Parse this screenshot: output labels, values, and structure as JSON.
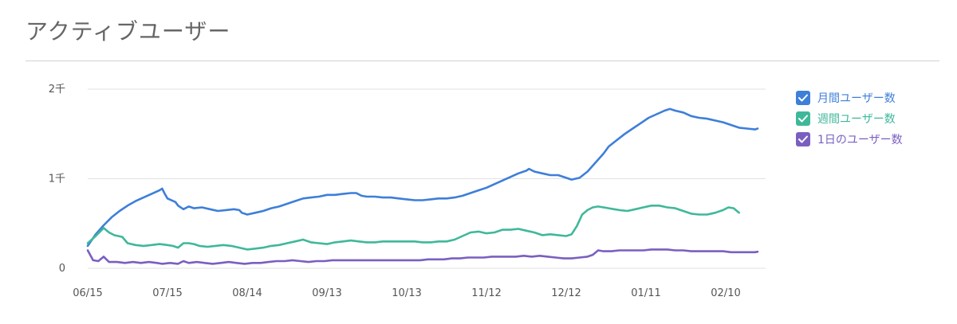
{
  "header": {
    "title": "アクティブユーザー"
  },
  "legend": {
    "items": [
      {
        "label": "月間ユーザー数",
        "color": "#3d7fd9",
        "checked": true
      },
      {
        "label": "週間ユーザー数",
        "color": "#3fb89a",
        "checked": true
      },
      {
        "label": "1日のユーザー数",
        "color": "#7a5fc0",
        "checked": true
      }
    ]
  },
  "chart_data": {
    "type": "line",
    "ylim": [
      0,
      2000
    ],
    "y_ticks": [
      {
        "value": 0,
        "label": "0"
      },
      {
        "value": 1000,
        "label": "1千"
      },
      {
        "value": 2000,
        "label": "2千"
      }
    ],
    "x_range": [
      0,
      255
    ],
    "x_ticks": [
      {
        "x": 0,
        "label": "06/15"
      },
      {
        "x": 30,
        "label": "07/15"
      },
      {
        "x": 60,
        "label": "08/14"
      },
      {
        "x": 90,
        "label": "09/13"
      },
      {
        "x": 120,
        "label": "10/13"
      },
      {
        "x": 150,
        "label": "11/12"
      },
      {
        "x": 180,
        "label": "12/12"
      },
      {
        "x": 210,
        "label": "01/11"
      },
      {
        "x": 240,
        "label": "02/10"
      }
    ],
    "grid": true,
    "legend_position": "right",
    "series": [
      {
        "name": "月間ユーザー数",
        "color": "#3d7fd9",
        "points": [
          [
            0,
            250
          ],
          [
            3,
            380
          ],
          [
            6,
            480
          ],
          [
            9,
            570
          ],
          [
            12,
            640
          ],
          [
            15,
            700
          ],
          [
            18,
            750
          ],
          [
            21,
            790
          ],
          [
            24,
            830
          ],
          [
            27,
            870
          ],
          [
            28,
            890
          ],
          [
            29,
            830
          ],
          [
            30,
            780
          ],
          [
            33,
            740
          ],
          [
            34,
            700
          ],
          [
            36,
            660
          ],
          [
            38,
            690
          ],
          [
            40,
            670
          ],
          [
            43,
            680
          ],
          [
            46,
            660
          ],
          [
            49,
            640
          ],
          [
            52,
            650
          ],
          [
            55,
            660
          ],
          [
            57,
            650
          ],
          [
            58,
            620
          ],
          [
            60,
            600
          ],
          [
            63,
            620
          ],
          [
            66,
            640
          ],
          [
            69,
            670
          ],
          [
            72,
            690
          ],
          [
            75,
            720
          ],
          [
            78,
            750
          ],
          [
            81,
            780
          ],
          [
            84,
            790
          ],
          [
            87,
            800
          ],
          [
            90,
            820
          ],
          [
            93,
            820
          ],
          [
            96,
            830
          ],
          [
            99,
            840
          ],
          [
            101,
            840
          ],
          [
            103,
            810
          ],
          [
            105,
            800
          ],
          [
            108,
            800
          ],
          [
            111,
            790
          ],
          [
            114,
            790
          ],
          [
            117,
            780
          ],
          [
            120,
            770
          ],
          [
            123,
            760
          ],
          [
            126,
            760
          ],
          [
            129,
            770
          ],
          [
            132,
            780
          ],
          [
            135,
            780
          ],
          [
            138,
            790
          ],
          [
            141,
            810
          ],
          [
            144,
            840
          ],
          [
            147,
            870
          ],
          [
            150,
            900
          ],
          [
            153,
            940
          ],
          [
            156,
            980
          ],
          [
            159,
            1020
          ],
          [
            162,
            1060
          ],
          [
            165,
            1090
          ],
          [
            166,
            1110
          ],
          [
            168,
            1080
          ],
          [
            171,
            1060
          ],
          [
            174,
            1040
          ],
          [
            177,
            1040
          ],
          [
            180,
            1010
          ],
          [
            182,
            990
          ],
          [
            185,
            1010
          ],
          [
            188,
            1080
          ],
          [
            191,
            1180
          ],
          [
            194,
            1280
          ],
          [
            196,
            1360
          ],
          [
            199,
            1430
          ],
          [
            202,
            1500
          ],
          [
            205,
            1560
          ],
          [
            208,
            1620
          ],
          [
            211,
            1680
          ],
          [
            214,
            1720
          ],
          [
            217,
            1760
          ],
          [
            219,
            1780
          ],
          [
            221,
            1760
          ],
          [
            224,
            1740
          ],
          [
            227,
            1700
          ],
          [
            230,
            1680
          ],
          [
            233,
            1670
          ],
          [
            236,
            1650
          ],
          [
            239,
            1630
          ],
          [
            242,
            1600
          ],
          [
            245,
            1570
          ],
          [
            248,
            1560
          ],
          [
            251,
            1550
          ],
          [
            252,
            1560
          ]
        ]
      },
      {
        "name": "週間ユーザー数",
        "color": "#3fb89a",
        "points": [
          [
            0,
            280
          ],
          [
            3,
            360
          ],
          [
            6,
            450
          ],
          [
            8,
            400
          ],
          [
            10,
            370
          ],
          [
            13,
            350
          ],
          [
            15,
            280
          ],
          [
            18,
            260
          ],
          [
            21,
            250
          ],
          [
            24,
            260
          ],
          [
            27,
            270
          ],
          [
            30,
            260
          ],
          [
            32,
            250
          ],
          [
            34,
            230
          ],
          [
            36,
            280
          ],
          [
            38,
            280
          ],
          [
            40,
            270
          ],
          [
            42,
            250
          ],
          [
            45,
            240
          ],
          [
            48,
            250
          ],
          [
            51,
            260
          ],
          [
            54,
            250
          ],
          [
            57,
            230
          ],
          [
            60,
            210
          ],
          [
            63,
            220
          ],
          [
            66,
            230
          ],
          [
            69,
            250
          ],
          [
            72,
            260
          ],
          [
            75,
            280
          ],
          [
            78,
            300
          ],
          [
            81,
            320
          ],
          [
            84,
            290
          ],
          [
            87,
            280
          ],
          [
            90,
            270
          ],
          [
            93,
            290
          ],
          [
            96,
            300
          ],
          [
            99,
            310
          ],
          [
            102,
            300
          ],
          [
            105,
            290
          ],
          [
            108,
            290
          ],
          [
            111,
            300
          ],
          [
            114,
            300
          ],
          [
            117,
            300
          ],
          [
            120,
            300
          ],
          [
            123,
            300
          ],
          [
            126,
            290
          ],
          [
            129,
            290
          ],
          [
            132,
            300
          ],
          [
            135,
            300
          ],
          [
            138,
            320
          ],
          [
            141,
            360
          ],
          [
            144,
            400
          ],
          [
            147,
            410
          ],
          [
            150,
            390
          ],
          [
            153,
            400
          ],
          [
            156,
            430
          ],
          [
            159,
            430
          ],
          [
            162,
            440
          ],
          [
            165,
            420
          ],
          [
            168,
            400
          ],
          [
            171,
            370
          ],
          [
            174,
            380
          ],
          [
            177,
            370
          ],
          [
            180,
            360
          ],
          [
            182,
            380
          ],
          [
            184,
            470
          ],
          [
            186,
            600
          ],
          [
            188,
            650
          ],
          [
            190,
            680
          ],
          [
            192,
            690
          ],
          [
            194,
            680
          ],
          [
            196,
            670
          ],
          [
            198,
            660
          ],
          [
            200,
            650
          ],
          [
            203,
            640
          ],
          [
            206,
            660
          ],
          [
            209,
            680
          ],
          [
            212,
            700
          ],
          [
            215,
            700
          ],
          [
            218,
            680
          ],
          [
            221,
            670
          ],
          [
            224,
            640
          ],
          [
            227,
            610
          ],
          [
            230,
            600
          ],
          [
            233,
            600
          ],
          [
            236,
            620
          ],
          [
            239,
            650
          ],
          [
            241,
            680
          ],
          [
            243,
            670
          ],
          [
            245,
            620
          ]
        ]
      },
      {
        "name": "1日のユーザー数",
        "color": "#7a5fc0",
        "points": [
          [
            0,
            200
          ],
          [
            2,
            90
          ],
          [
            4,
            80
          ],
          [
            6,
            130
          ],
          [
            8,
            70
          ],
          [
            11,
            70
          ],
          [
            14,
            60
          ],
          [
            17,
            70
          ],
          [
            20,
            60
          ],
          [
            23,
            70
          ],
          [
            26,
            60
          ],
          [
            28,
            50
          ],
          [
            31,
            60
          ],
          [
            34,
            50
          ],
          [
            36,
            80
          ],
          [
            38,
            60
          ],
          [
            41,
            70
          ],
          [
            44,
            60
          ],
          [
            47,
            50
          ],
          [
            50,
            60
          ],
          [
            53,
            70
          ],
          [
            56,
            60
          ],
          [
            59,
            50
          ],
          [
            62,
            60
          ],
          [
            65,
            60
          ],
          [
            68,
            70
          ],
          [
            71,
            80
          ],
          [
            74,
            80
          ],
          [
            77,
            90
          ],
          [
            80,
            80
          ],
          [
            83,
            70
          ],
          [
            86,
            80
          ],
          [
            89,
            80
          ],
          [
            92,
            90
          ],
          [
            95,
            90
          ],
          [
            98,
            90
          ],
          [
            101,
            90
          ],
          [
            104,
            90
          ],
          [
            107,
            90
          ],
          [
            110,
            90
          ],
          [
            113,
            90
          ],
          [
            116,
            90
          ],
          [
            119,
            90
          ],
          [
            122,
            90
          ],
          [
            125,
            90
          ],
          [
            128,
            100
          ],
          [
            131,
            100
          ],
          [
            134,
            100
          ],
          [
            137,
            110
          ],
          [
            140,
            110
          ],
          [
            143,
            120
          ],
          [
            146,
            120
          ],
          [
            149,
            120
          ],
          [
            152,
            130
          ],
          [
            155,
            130
          ],
          [
            158,
            130
          ],
          [
            161,
            130
          ],
          [
            164,
            140
          ],
          [
            167,
            130
          ],
          [
            170,
            140
          ],
          [
            173,
            130
          ],
          [
            176,
            120
          ],
          [
            179,
            110
          ],
          [
            182,
            110
          ],
          [
            185,
            120
          ],
          [
            188,
            130
          ],
          [
            190,
            150
          ],
          [
            192,
            200
          ],
          [
            194,
            190
          ],
          [
            197,
            190
          ],
          [
            200,
            200
          ],
          [
            203,
            200
          ],
          [
            206,
            200
          ],
          [
            209,
            200
          ],
          [
            212,
            210
          ],
          [
            215,
            210
          ],
          [
            218,
            210
          ],
          [
            221,
            200
          ],
          [
            224,
            200
          ],
          [
            227,
            190
          ],
          [
            230,
            190
          ],
          [
            233,
            190
          ],
          [
            236,
            190
          ],
          [
            239,
            190
          ],
          [
            242,
            180
          ],
          [
            245,
            180
          ],
          [
            248,
            180
          ],
          [
            251,
            180
          ],
          [
            252,
            185
          ]
        ]
      }
    ]
  }
}
